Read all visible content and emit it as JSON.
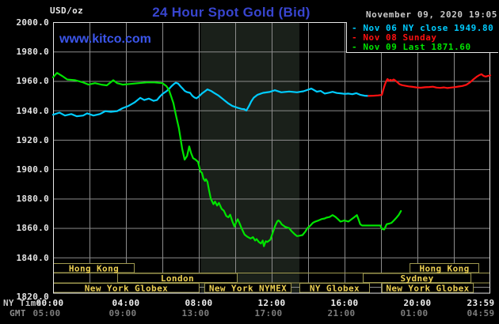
{
  "header": {
    "title": "24 Hour Spot Gold (Bid)",
    "datetime": "November 09, 2020 19:05",
    "units_label": "USD/oz",
    "watermark": "www.kitco.com"
  },
  "legend": [
    {
      "label": "- Nov 06 NY close 1949.80",
      "color": "#00ccff"
    },
    {
      "label": "- Nov 08 Sunday",
      "color": "#ff1111"
    },
    {
      "label": "- Nov 09 Last 1871.60",
      "color": "#00e400"
    }
  ],
  "axes": {
    "y_ticks": [
      "2000.0",
      "1980.0",
      "1960.0",
      "1940.0",
      "1920.0",
      "1900.0",
      "1880.0",
      "1860.0",
      "1840.0",
      "1820.0"
    ],
    "x_ny_label": "NY Time",
    "x_gmt_label": "GMT",
    "x_ny_ticks": [
      "00:00",
      "04:00",
      "08:00",
      "12:00",
      "16:00",
      "20:00",
      "23:59"
    ],
    "x_gmt_ticks": [
      "05:00",
      "09:00",
      "13:00",
      "17:00",
      "21:00",
      "01:00",
      "04:59"
    ]
  },
  "sessions": [
    {
      "label": "Hong Kong",
      "row": 0,
      "start_h": 0.0,
      "end_h": 4.48
    },
    {
      "label": "Hong Kong",
      "row": 0,
      "start_h": 19.57,
      "end_h": 23.39
    },
    {
      "label": "London",
      "row": 1,
      "start_h": 3.52,
      "end_h": 10.13
    },
    {
      "label": "Sydney",
      "row": 1,
      "start_h": 17.0,
      "end_h": 22.96
    },
    {
      "label": "New York Globex",
      "row": 2,
      "start_h": 0.0,
      "end_h": 8.04
    },
    {
      "label": "New York NYMEX",
      "row": 2,
      "start_h": 8.3,
      "end_h": 13.09
    },
    {
      "label": "NY Globex",
      "row": 2,
      "start_h": 13.52,
      "end_h": 17.39
    },
    {
      "label": "New York Globex",
      "row": 2,
      "start_h": 18.04,
      "end_h": 23.09
    }
  ],
  "colors": {
    "background": "#000000",
    "grid": "#8c8c8c",
    "frame": "#e8e8e8",
    "session_shade": "#1a201a",
    "session_border": "#a09a50",
    "session_text": "#eccf52",
    "nov06": "#00ccff",
    "nov08": "#ff1111",
    "nov09": "#00e400"
  },
  "chart_data": {
    "type": "line",
    "title": "24 Hour Spot Gold (Bid)",
    "ylabel": "USD/oz",
    "xlabel": "NY Time / GMT",
    "ylim": [
      1815.7,
      2000
    ],
    "x_minutes_range": [
      0,
      1439
    ],
    "y_gridline_step": 20,
    "x_gridline_step_hours": 2,
    "legend_position": "top-right",
    "shaded_session_hours": [
      8.1,
      13.52
    ],
    "series": [
      {
        "key": "nov06",
        "name": "Nov 06 NY close",
        "color": "#00ccff",
        "last_value": 1949.8,
        "points": [
          [
            0,
            1937
          ],
          [
            21,
            1938.5
          ],
          [
            39,
            1936.5
          ],
          [
            60,
            1937.5
          ],
          [
            78,
            1936
          ],
          [
            99,
            1936.5
          ],
          [
            112,
            1938
          ],
          [
            133,
            1936.5
          ],
          [
            154,
            1937.5
          ],
          [
            172,
            1939.5
          ],
          [
            190,
            1939
          ],
          [
            211,
            1939.5
          ],
          [
            229,
            1941.5
          ],
          [
            248,
            1943
          ],
          [
            269,
            1945.5
          ],
          [
            287,
            1948.5
          ],
          [
            300,
            1947
          ],
          [
            315,
            1948
          ],
          [
            331,
            1946.5
          ],
          [
            342,
            1947
          ],
          [
            352,
            1949.5
          ],
          [
            362,
            1951.5
          ],
          [
            373,
            1953
          ],
          [
            381,
            1954.5
          ],
          [
            390,
            1956.5
          ],
          [
            398,
            1958
          ],
          [
            404,
            1958.8
          ],
          [
            412,
            1958.2
          ],
          [
            420,
            1956.2
          ],
          [
            428,
            1954.5
          ],
          [
            433,
            1953.3
          ],
          [
            440,
            1952.5
          ],
          [
            451,
            1951.9
          ],
          [
            458,
            1950
          ],
          [
            465,
            1948.8
          ],
          [
            472,
            1948.2
          ],
          [
            480,
            1949.5
          ],
          [
            490,
            1951.5
          ],
          [
            500,
            1953
          ],
          [
            508,
            1954.3
          ],
          [
            520,
            1953.2
          ],
          [
            529,
            1952
          ],
          [
            545,
            1950
          ],
          [
            560,
            1947.5
          ],
          [
            575,
            1945
          ],
          [
            590,
            1943
          ],
          [
            607,
            1941.8
          ],
          [
            620,
            1941
          ],
          [
            630,
            1940.8
          ],
          [
            636,
            1939.8
          ],
          [
            645,
            1943
          ],
          [
            652,
            1946
          ],
          [
            660,
            1948.5
          ],
          [
            673,
            1950.6
          ],
          [
            691,
            1951.9
          ],
          [
            712,
            1952.5
          ],
          [
            730,
            1953.7
          ],
          [
            751,
            1952.3
          ],
          [
            777,
            1952.8
          ],
          [
            803,
            1952.3
          ],
          [
            824,
            1953
          ],
          [
            850,
            1954.8
          ],
          [
            868,
            1952.7
          ],
          [
            881,
            1953.2
          ],
          [
            894,
            1951.4
          ],
          [
            908,
            1952
          ],
          [
            920,
            1952.6
          ],
          [
            934,
            1951.8
          ],
          [
            946,
            1951.6
          ],
          [
            960,
            1951.2
          ],
          [
            972,
            1951.4
          ],
          [
            985,
            1951
          ],
          [
            998,
            1951.7
          ],
          [
            1012,
            1950.5
          ],
          [
            1025,
            1950
          ],
          [
            1038,
            1949.8
          ]
        ]
      },
      {
        "key": "nov08",
        "name": "Nov 08 Sunday",
        "color": "#ff1111",
        "last_value": 1963.8,
        "points": [
          [
            1038,
            1949.8
          ],
          [
            1055,
            1950
          ],
          [
            1070,
            1950.2
          ],
          [
            1082,
            1950.5
          ],
          [
            1086,
            1953.5
          ],
          [
            1092,
            1957.5
          ],
          [
            1097,
            1960
          ],
          [
            1101,
            1961.3
          ],
          [
            1106,
            1960
          ],
          [
            1110,
            1960.8
          ],
          [
            1115,
            1960.2
          ],
          [
            1121,
            1961
          ],
          [
            1127,
            1960.2
          ],
          [
            1134,
            1959
          ],
          [
            1140,
            1957.8
          ],
          [
            1148,
            1957.2
          ],
          [
            1158,
            1956.8
          ],
          [
            1170,
            1956.3
          ],
          [
            1183,
            1956
          ],
          [
            1196,
            1955.6
          ],
          [
            1210,
            1955.4
          ],
          [
            1224,
            1955.7
          ],
          [
            1238,
            1955.9
          ],
          [
            1250,
            1956.1
          ],
          [
            1262,
            1955.5
          ],
          [
            1274,
            1955.3
          ],
          [
            1286,
            1955.6
          ],
          [
            1298,
            1955.2
          ],
          [
            1310,
            1955.5
          ],
          [
            1322,
            1955.8
          ],
          [
            1334,
            1956.2
          ],
          [
            1347,
            1956.6
          ],
          [
            1360,
            1957.4
          ],
          [
            1372,
            1959
          ],
          [
            1383,
            1961
          ],
          [
            1394,
            1962.8
          ],
          [
            1403,
            1964
          ],
          [
            1410,
            1964.6
          ],
          [
            1417,
            1963.4
          ],
          [
            1424,
            1963
          ],
          [
            1431,
            1963.4
          ],
          [
            1439,
            1963.8
          ]
        ]
      },
      {
        "key": "nov09",
        "name": "Nov 09",
        "color": "#00e400",
        "last_value": 1871.6,
        "points": [
          [
            0,
            1962.5
          ],
          [
            13,
            1965.5
          ],
          [
            29,
            1963.5
          ],
          [
            47,
            1961
          ],
          [
            73,
            1960.5
          ],
          [
            99,
            1959
          ],
          [
            117,
            1957.5
          ],
          [
            138,
            1958.5
          ],
          [
            159,
            1957.5
          ],
          [
            177,
            1957
          ],
          [
            198,
            1960.5
          ],
          [
            211,
            1958.5
          ],
          [
            229,
            1957.5
          ],
          [
            255,
            1958
          ],
          [
            282,
            1958.5
          ],
          [
            308,
            1959
          ],
          [
            334,
            1959
          ],
          [
            360,
            1958.5
          ],
          [
            373,
            1956.5
          ],
          [
            381,
            1954
          ],
          [
            388,
            1950
          ],
          [
            396,
            1945
          ],
          [
            404,
            1937
          ],
          [
            414,
            1928
          ],
          [
            425,
            1914
          ],
          [
            433,
            1906.5
          ],
          [
            441,
            1909
          ],
          [
            448,
            1915.5
          ],
          [
            454,
            1911
          ],
          [
            461,
            1907.5
          ],
          [
            469,
            1906.5
          ],
          [
            477,
            1905
          ],
          [
            485,
            1898.5
          ],
          [
            490,
            1897.5
          ],
          [
            495,
            1893.5
          ],
          [
            500,
            1892
          ],
          [
            503,
            1893.2
          ],
          [
            508,
            1891.5
          ],
          [
            513,
            1886
          ],
          [
            519,
            1880
          ],
          [
            528,
            1876.2
          ],
          [
            533,
            1878
          ],
          [
            540,
            1875.3
          ],
          [
            546,
            1877.1
          ],
          [
            555,
            1873
          ],
          [
            562,
            1871.8
          ],
          [
            570,
            1868.2
          ],
          [
            577,
            1867.3
          ],
          [
            583,
            1869.1
          ],
          [
            590,
            1864.6
          ],
          [
            597,
            1861
          ],
          [
            604,
            1864.6
          ],
          [
            608,
            1866
          ],
          [
            613,
            1863.7
          ],
          [
            620,
            1860.1
          ],
          [
            630,
            1855.6
          ],
          [
            640,
            1854
          ],
          [
            650,
            1852.9
          ],
          [
            658,
            1853.8
          ],
          [
            665,
            1851.5
          ],
          [
            670,
            1852.5
          ],
          [
            677,
            1850.5
          ],
          [
            684,
            1849.5
          ],
          [
            690,
            1851.5
          ],
          [
            694,
            1847.6
          ],
          [
            700,
            1851
          ],
          [
            705,
            1850.5
          ],
          [
            715,
            1852
          ],
          [
            725,
            1858
          ],
          [
            731,
            1861.5
          ],
          [
            738,
            1864.6
          ],
          [
            742,
            1865.2
          ],
          [
            748,
            1864
          ],
          [
            752,
            1862.6
          ],
          [
            764,
            1860.8
          ],
          [
            777,
            1859.9
          ],
          [
            784,
            1858.1
          ],
          [
            795,
            1855.8
          ],
          [
            803,
            1854.5
          ],
          [
            812,
            1854.8
          ],
          [
            821,
            1855.2
          ],
          [
            830,
            1857.5
          ],
          [
            837,
            1859.9
          ],
          [
            847,
            1861.7
          ],
          [
            855,
            1863.5
          ],
          [
            863,
            1864.4
          ],
          [
            874,
            1865.2
          ],
          [
            884,
            1866.1
          ],
          [
            894,
            1866.5
          ],
          [
            899,
            1867
          ],
          [
            910,
            1867.5
          ],
          [
            920,
            1868.8
          ],
          [
            930,
            1867.5
          ],
          [
            938,
            1866
          ],
          [
            946,
            1864.4
          ],
          [
            959,
            1865.2
          ],
          [
            972,
            1864.4
          ],
          [
            991,
            1867.3
          ],
          [
            1000,
            1868.8
          ],
          [
            1006,
            1865.5
          ],
          [
            1011,
            1862.6
          ],
          [
            1017,
            1861.7
          ],
          [
            1040,
            1861.7
          ],
          [
            1060,
            1861.7
          ],
          [
            1077,
            1861.7
          ],
          [
            1083,
            1859.3
          ],
          [
            1090,
            1859
          ],
          [
            1098,
            1862.6
          ],
          [
            1106,
            1863
          ],
          [
            1114,
            1863.5
          ],
          [
            1122,
            1865.2
          ],
          [
            1130,
            1867
          ],
          [
            1138,
            1869
          ],
          [
            1145,
            1871.6
          ]
        ]
      }
    ]
  }
}
